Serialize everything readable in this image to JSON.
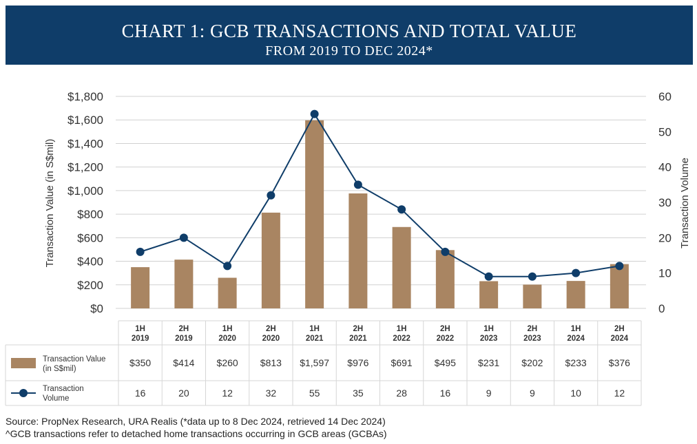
{
  "banner": {
    "title": "CHART 1: GCB TRANSACTIONS AND TOTAL VALUE",
    "subtitle": "FROM 2019 TO DEC 2024*"
  },
  "chart_data": {
    "type": "bar",
    "categories": [
      [
        "1H",
        "2019"
      ],
      [
        "2H",
        "2019"
      ],
      [
        "1H",
        "2020"
      ],
      [
        "2H",
        "2020"
      ],
      [
        "1H",
        "2021"
      ],
      [
        "2H",
        "2021"
      ],
      [
        "1H",
        "2022"
      ],
      [
        "2H",
        "2022"
      ],
      [
        "1H",
        "2023"
      ],
      [
        "2H",
        "2023"
      ],
      [
        "1H",
        "2024"
      ],
      [
        "2H",
        "2024"
      ]
    ],
    "series": [
      {
        "name": "Transaction Value (in S$mil)",
        "type": "bar",
        "axis": "left",
        "color": "#a98562",
        "values": [
          350,
          414,
          260,
          813,
          1597,
          976,
          691,
          495,
          231,
          202,
          233,
          376
        ],
        "labels": [
          "$350",
          "$414",
          "$260",
          "$813",
          "$1,597",
          "$976",
          "$691",
          "$495",
          "$231",
          "$202",
          "$233",
          "$376"
        ],
        "legend_lines": [
          "Transaction Value",
          "(in S$mil)"
        ]
      },
      {
        "name": "Transaction Volume",
        "type": "line",
        "axis": "right",
        "color": "#0f3d69",
        "values": [
          16,
          20,
          12,
          32,
          55,
          35,
          28,
          16,
          9,
          9,
          10,
          12
        ],
        "labels": [
          "16",
          "20",
          "12",
          "32",
          "55",
          "35",
          "28",
          "16",
          "9",
          "9",
          "10",
          "12"
        ],
        "legend_lines": [
          "Transaction",
          "Volume"
        ]
      }
    ],
    "y_left": {
      "label": "Transaction Value (in S$mil)",
      "ylim": [
        0,
        1800
      ],
      "ticks": [
        0,
        200,
        400,
        600,
        800,
        1000,
        1200,
        1400,
        1600,
        1800
      ],
      "tick_labels": [
        "$0",
        "$200",
        "$400",
        "$600",
        "$800",
        "$1,000",
        "$1,200",
        "$1,400",
        "$1,600",
        "$1,800"
      ]
    },
    "y_right": {
      "label": "Transaction Volume",
      "ylim": [
        0,
        60
      ],
      "ticks": [
        0,
        10,
        20,
        30,
        40,
        50,
        60
      ],
      "tick_labels": [
        "0",
        "10",
        "20",
        "30",
        "40",
        "50",
        "60"
      ]
    },
    "grid": true,
    "legend": "data-table-left"
  },
  "source": {
    "line1": "Source: PropNex Research, URA Realis (*data up to 8 Dec 2024, retrieved 14 Dec 2024)",
    "line2": " ^GCB transactions refer to detached home transactions occurring in GCB areas (GCBAs)"
  }
}
